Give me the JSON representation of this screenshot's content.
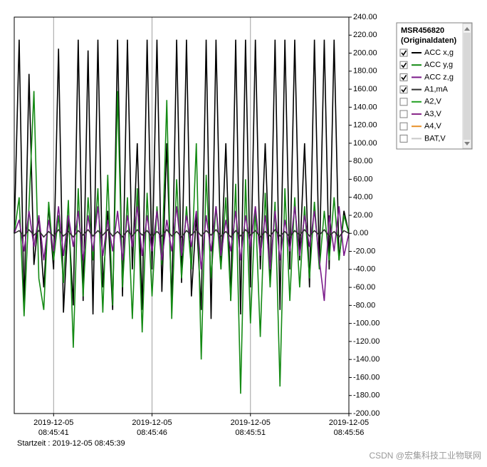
{
  "chart_data": {
    "type": "line",
    "legend_title": [
      "MSR456820",
      "(Originaldaten)"
    ],
    "start_label": "Startzeit : 2019-12-05 08:45:39",
    "watermark": "CSDN @宏集科技工业物联网",
    "xlim": [
      39,
      56
    ],
    "xticks": [
      {
        "value": 41,
        "label": [
          "2019-12-05",
          "08:45:41"
        ]
      },
      {
        "value": 46,
        "label": [
          "2019-12-05",
          "08:45:46"
        ]
      },
      {
        "value": 51,
        "label": [
          "2019-12-05",
          "08:45:51"
        ]
      },
      {
        "value": 56,
        "label": [
          "2019-12-05",
          "08:45:56"
        ]
      }
    ],
    "ylim": [
      -200,
      240
    ],
    "yticks": [
      {
        "value": 240,
        "label": "240.00"
      },
      {
        "value": 220,
        "label": "220.00"
      },
      {
        "value": 200,
        "label": "200.00"
      },
      {
        "value": 180,
        "label": "180.00"
      },
      {
        "value": 160,
        "label": "160.00"
      },
      {
        "value": 140,
        "label": "140.00"
      },
      {
        "value": 120,
        "label": "120.00"
      },
      {
        "value": 100,
        "label": "100.00"
      },
      {
        "value": 80,
        "label": "80.00"
      },
      {
        "value": 60,
        "label": "60.00"
      },
      {
        "value": 40,
        "label": "40.00"
      },
      {
        "value": 20,
        "label": "20.00"
      },
      {
        "value": 0,
        "label": "0.00"
      },
      {
        "value": -20,
        "label": "-20.00"
      },
      {
        "value": -40,
        "label": "-40.00"
      },
      {
        "value": -60,
        "label": "-60.00"
      },
      {
        "value": -80,
        "label": "-80.00"
      },
      {
        "value": -100,
        "label": "-100.00"
      },
      {
        "value": -120,
        "label": "-120.00"
      },
      {
        "value": -140,
        "label": "-140.00"
      },
      {
        "value": -160,
        "label": "-160.00"
      },
      {
        "value": -180,
        "label": "-180.00"
      },
      {
        "value": -200,
        "label": "-200.00"
      }
    ],
    "grid": "x",
    "x": [
      39,
      39.25,
      39.5,
      39.75,
      40,
      40.25,
      40.5,
      40.75,
      41,
      41.25,
      41.5,
      41.75,
      42,
      42.25,
      42.5,
      42.75,
      43,
      43.25,
      43.5,
      43.75,
      44,
      44.25,
      44.5,
      44.75,
      45,
      45.25,
      45.5,
      45.75,
      46,
      46.25,
      46.5,
      46.75,
      47,
      47.25,
      47.5,
      47.75,
      48,
      48.25,
      48.5,
      48.75,
      49,
      49.25,
      49.5,
      49.75,
      50,
      50.25,
      50.5,
      50.75,
      51,
      51.25,
      51.5,
      51.75,
      52,
      52.25,
      52.5,
      52.75,
      53,
      53.25,
      53.5,
      53.75,
      54,
      54.25,
      54.5,
      54.75,
      55,
      55.25,
      55.5,
      55.75,
      56
    ],
    "series": [
      {
        "name": "ACC x,g",
        "color": "#000000",
        "checked": true,
        "values": [
          0,
          215,
          -85,
          177,
          -35,
          20,
          -60,
          30,
          -40,
          205,
          -88,
          20,
          -80,
          215,
          -75,
          203,
          -90,
          215,
          -60,
          25,
          -85,
          215,
          -70,
          215,
          -40,
          100,
          -85,
          215,
          -40,
          215,
          -65,
          100,
          -80,
          215,
          -55,
          215,
          -70,
          20,
          -85,
          215,
          -95,
          215,
          -40,
          100,
          -75,
          215,
          -90,
          215,
          -60,
          215,
          -40,
          100,
          -55,
          215,
          -85,
          215,
          -40,
          215,
          -30,
          100,
          -60,
          215,
          -35,
          215,
          -40,
          215,
          -30,
          25,
          0
        ]
      },
      {
        "name": "ACC y,g",
        "color": "#148a14",
        "checked": true,
        "values": [
          0,
          40,
          -92,
          30,
          158,
          -50,
          -85,
          35,
          -30,
          20,
          -55,
          37,
          -127,
          50,
          -70,
          40,
          -30,
          50,
          -88,
          65,
          -80,
          158,
          -60,
          40,
          -95,
          50,
          -110,
          45,
          -70,
          30,
          -35,
          148,
          -95,
          60,
          -50,
          30,
          -40,
          100,
          -140,
          65,
          -50,
          30,
          -40,
          40,
          -75,
          55,
          -178,
          60,
          -100,
          30,
          -115,
          45,
          -60,
          35,
          -170,
          50,
          -75,
          40,
          -60,
          30,
          -50,
          35,
          -40,
          25,
          -30,
          40,
          -30,
          20,
          0
        ]
      },
      {
        "name": "ACC z,g",
        "color": "#7a1a8a",
        "checked": true,
        "values": [
          0,
          15,
          -20,
          25,
          -15,
          20,
          -30,
          15,
          -20,
          30,
          -25,
          20,
          -15,
          25,
          -30,
          20,
          -20,
          30,
          -25,
          15,
          -20,
          25,
          -30,
          20,
          -15,
          30,
          -25,
          20,
          -20,
          25,
          -30,
          15,
          -20,
          30,
          -25,
          20,
          -15,
          25,
          -40,
          20,
          -20,
          30,
          -25,
          15,
          -20,
          25,
          -30,
          20,
          -15,
          30,
          -25,
          20,
          -40,
          25,
          -30,
          15,
          -20,
          30,
          -25,
          20,
          -15,
          25,
          -30,
          -75,
          20,
          -20,
          30,
          -25,
          0
        ]
      },
      {
        "name": "A1,mA",
        "color": "#303030",
        "checked": true,
        "values": [
          0,
          3,
          -3,
          4,
          -2,
          3,
          -4,
          2,
          -3,
          4,
          -3,
          2,
          -4,
          3,
          -2,
          4,
          -3,
          3,
          -2,
          4,
          -3,
          2,
          -4,
          3,
          -3,
          4,
          -2,
          3,
          -4,
          2,
          -3,
          4,
          -3,
          2,
          -4,
          3,
          -2,
          4,
          -3,
          3,
          -2,
          4,
          -3,
          2,
          -4,
          3,
          -3,
          4,
          -2,
          3,
          -4,
          2,
          -3,
          4,
          -3,
          2,
          -4,
          3,
          -2,
          4,
          -3,
          3,
          -2,
          4,
          -3,
          2,
          -4,
          3,
          0
        ]
      },
      {
        "name": "A2,V",
        "color": "#22a022",
        "checked": false
      },
      {
        "name": "A3,V",
        "color": "#8a2a8a",
        "checked": false
      },
      {
        "name": "A4,V",
        "color": "#e8902a",
        "checked": false
      },
      {
        "name": "BAT,V",
        "color": "#c8c8c8",
        "checked": false
      }
    ]
  }
}
